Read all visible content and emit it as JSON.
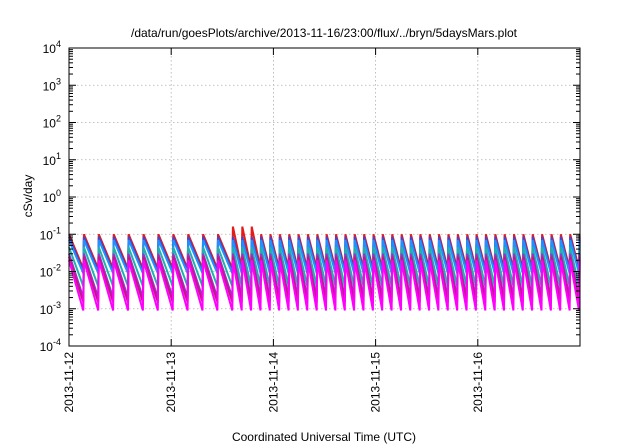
{
  "chart_data": {
    "type": "line",
    "title": "/data/run/goesPlots/archive/2013-11-16/23:00/flux/../bryn/5daysMars.plot",
    "xlabel": "Coordinated Universal Time (UTC)",
    "ylabel": "cSv/day",
    "yscale": "log",
    "ylim": [
      0.0001,
      10000
    ],
    "xlim": [
      "2013-11-12 00:00",
      "2013-11-17 00:00"
    ],
    "grid": true,
    "y_ticks": [
      {
        "base": "10",
        "exp": "4"
      },
      {
        "base": "10",
        "exp": "3"
      },
      {
        "base": "10",
        "exp": "2"
      },
      {
        "base": "10",
        "exp": "1"
      },
      {
        "base": "10",
        "exp": "0"
      },
      {
        "base": "10",
        "exp": "-1"
      },
      {
        "base": "10",
        "exp": "-2"
      },
      {
        "base": "10",
        "exp": "-3"
      },
      {
        "base": "10",
        "exp": "-4"
      }
    ],
    "x_ticks": [
      "2013-11-12",
      "2013-11-13",
      "2013-11-14",
      "2013-11-15",
      "2013-11-16"
    ],
    "series_pattern": {
      "shape": "sawtooth",
      "cycles_per_day": 11,
      "day_1_1.5_cycles_per_day": 7,
      "period_hours_day1": 3.5,
      "period_hours_later": 2.2
    },
    "series": [
      {
        "color": "#e41a1c",
        "peak": 0.1,
        "trough": 0.012,
        "spike_peak": 0.16
      },
      {
        "color": "#4444cc",
        "peak": 0.085,
        "trough": 0.01
      },
      {
        "color": "#1e90ff",
        "peak": 0.07,
        "trough": 0.009
      },
      {
        "color": "#20b2aa",
        "peak": 0.045,
        "trough": 0.004
      },
      {
        "color": "#9932cc",
        "peak": 0.03,
        "trough": 0.002
      },
      {
        "color": "#c71585",
        "peak": 0.025,
        "trough": 0.0015
      },
      {
        "color": "#ff00ff",
        "peak": 0.02,
        "trough": 0.0009
      }
    ]
  }
}
